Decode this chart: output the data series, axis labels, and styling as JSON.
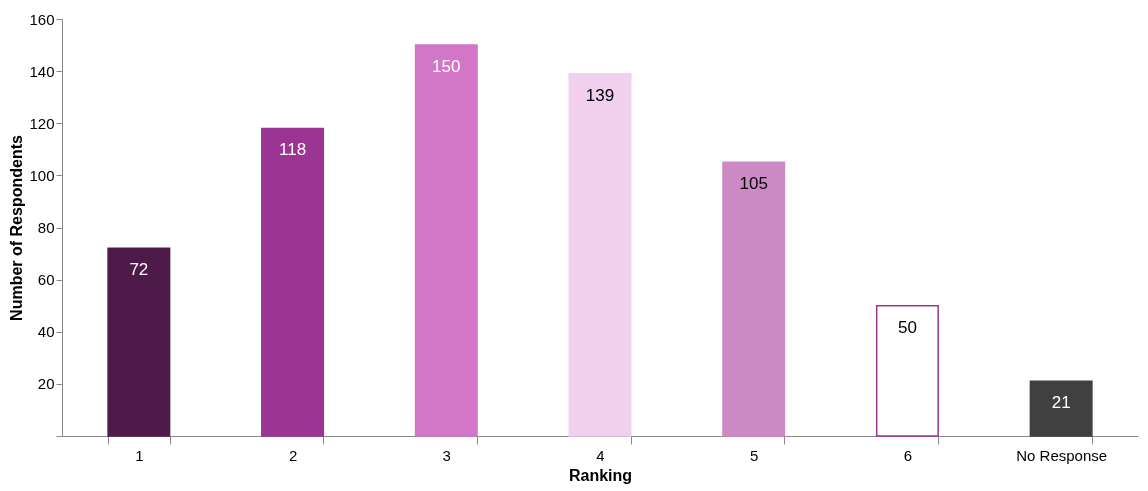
{
  "chart_data": {
    "type": "bar",
    "xlabel": "Ranking",
    "ylabel": "Number of Respondents",
    "categories": [
      "1",
      "2",
      "3",
      "4",
      "5",
      "6",
      "No Response"
    ],
    "values": [
      72,
      118,
      150,
      139,
      105,
      50,
      21
    ],
    "colors": [
      "#4e1a4a",
      "#9b3593",
      "#d276c8",
      "#f0d0ec",
      "#cc8ac5",
      "#ffffff",
      "#404040"
    ],
    "ylim": [
      0,
      160
    ],
    "yticks": [
      {
        "value": 0,
        "label": null
      },
      20,
      40,
      60,
      80,
      100,
      120,
      140,
      160
    ],
    "data_labels": true,
    "grid": false
  }
}
